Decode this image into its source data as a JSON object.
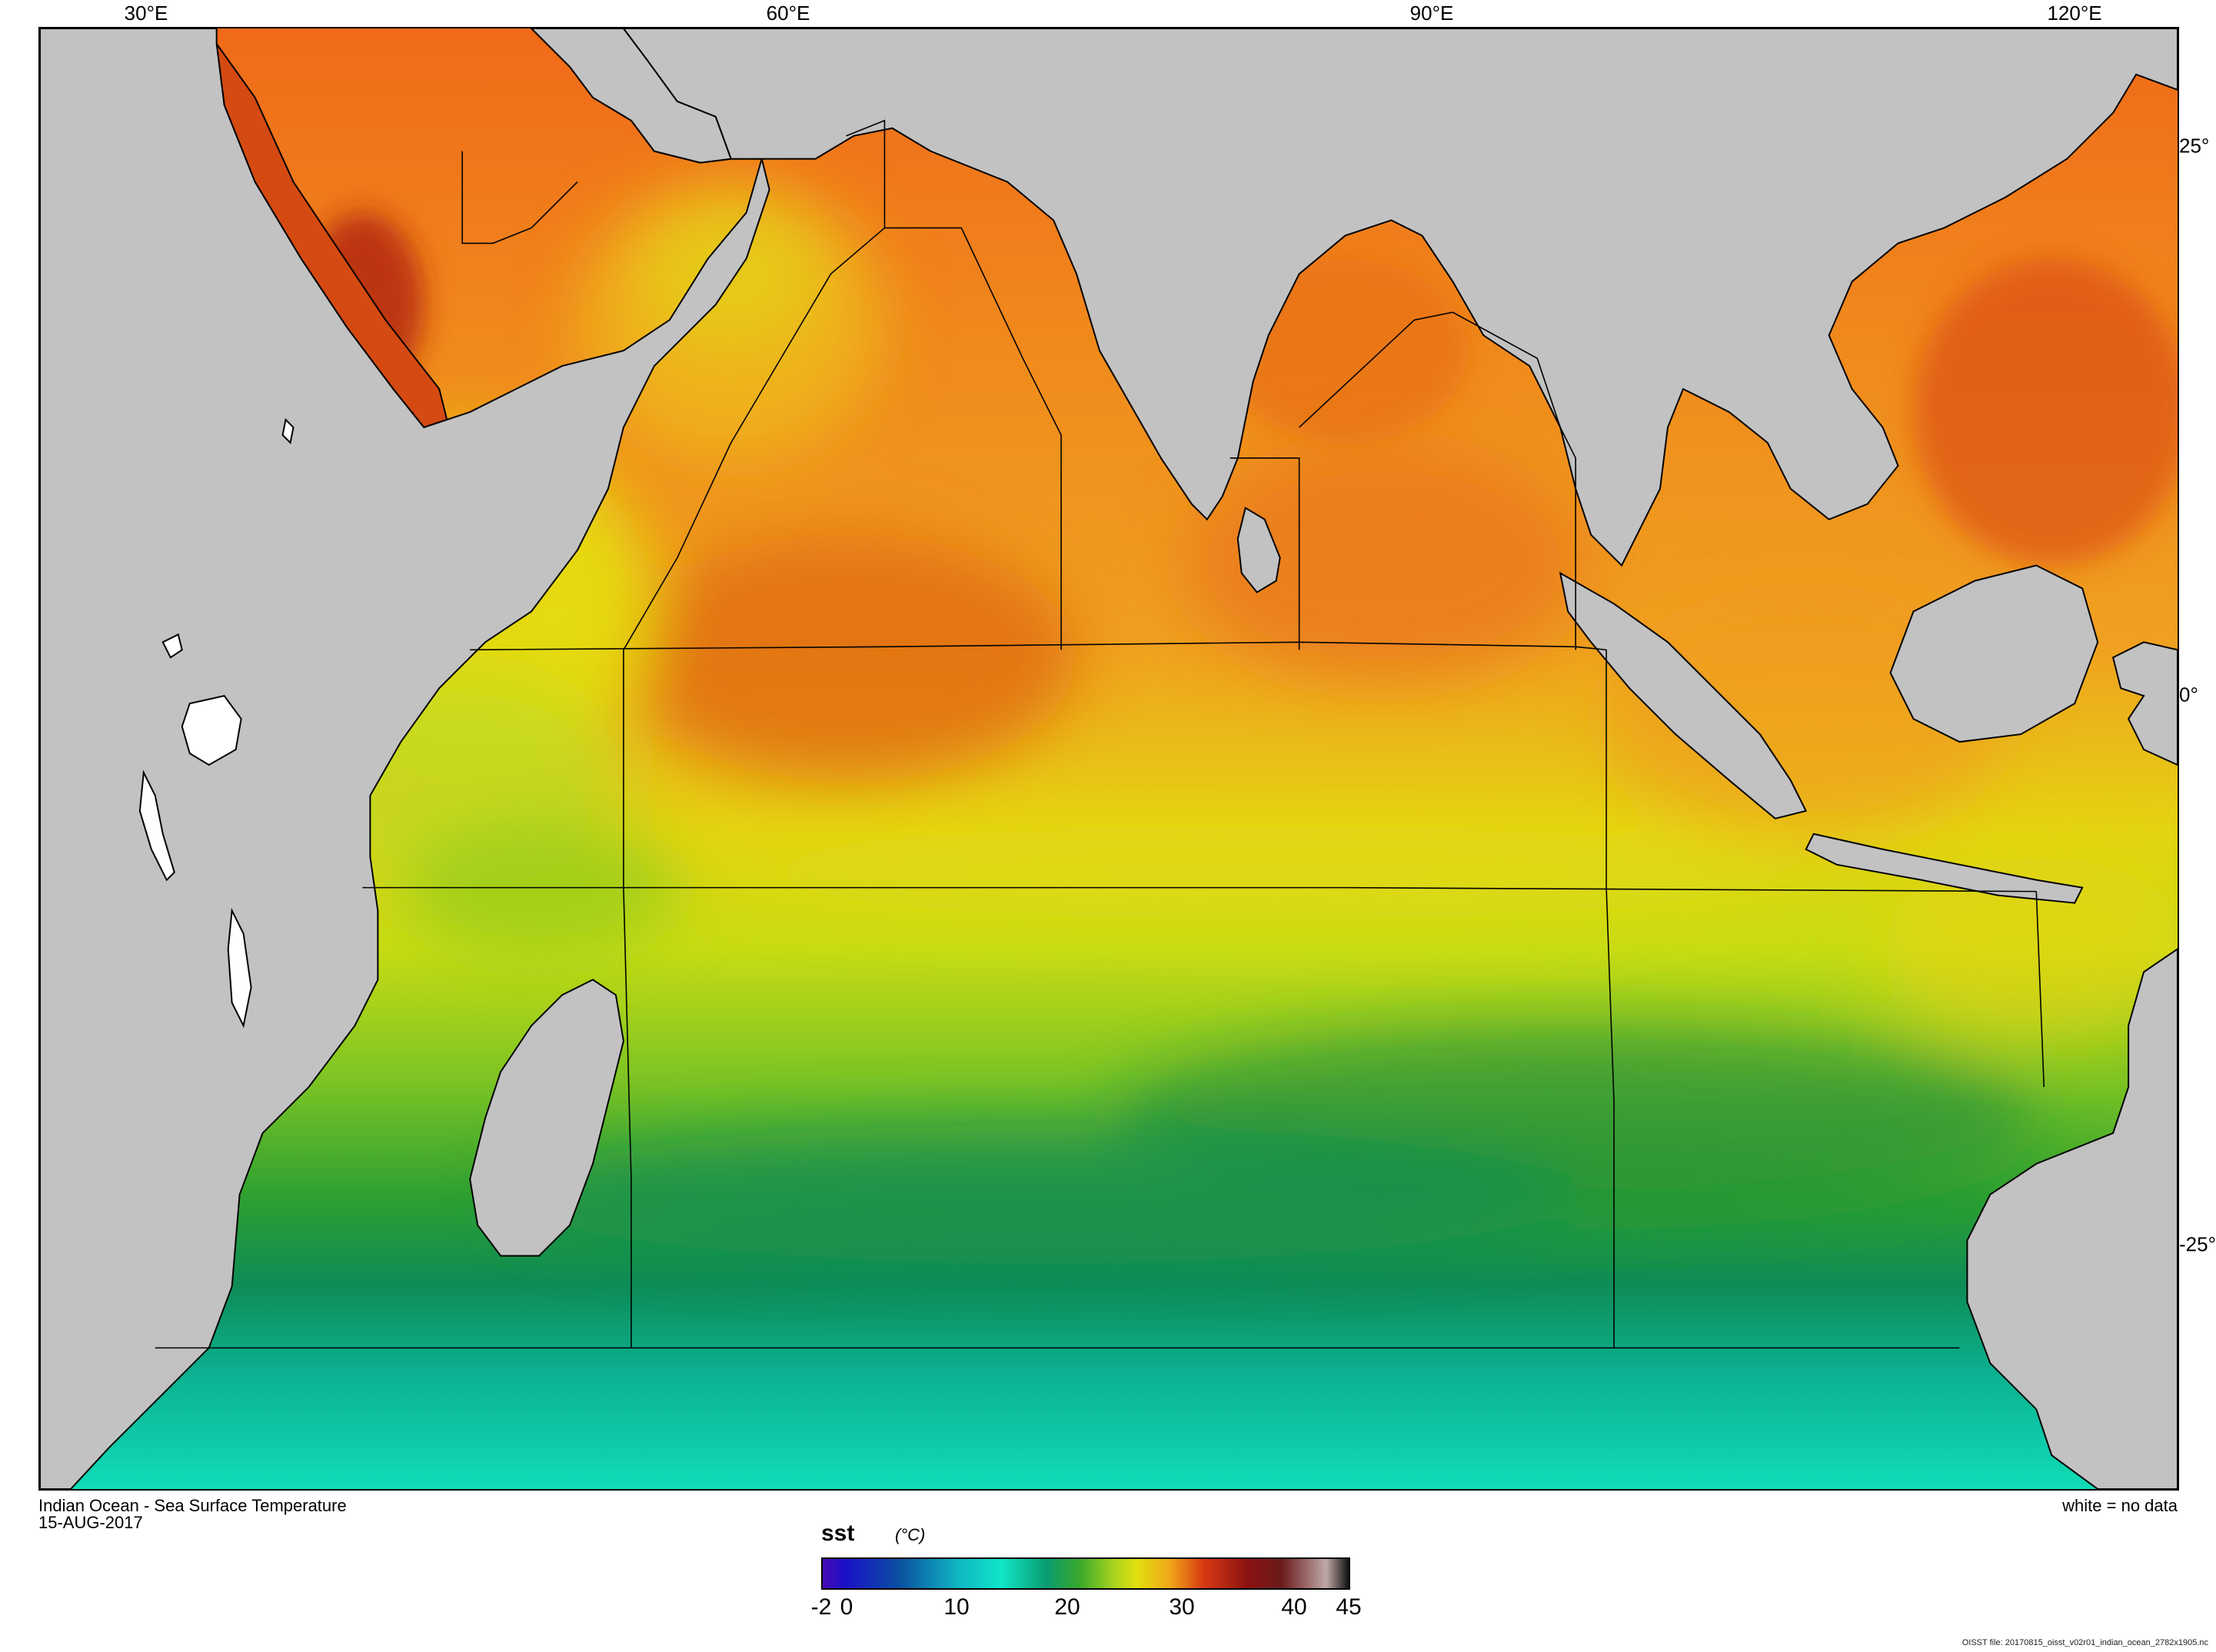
{
  "map": {
    "title": "Indian Ocean - Sea Surface Temperature",
    "date": "15-AUG-2017",
    "no_data_note": "white = no data",
    "source_note": "OISST file: 20170815_oisst_v02r01_indian_ocean_2782x1905.nc",
    "lon_labels": [
      "30°E",
      "60°E",
      "90°E",
      "120°E"
    ],
    "lat_labels": [
      "25°",
      "0°",
      "-25°"
    ],
    "colors": {
      "land": "#c2c2c2",
      "no_data": "#ffffff",
      "coast": "#000000",
      "warm_sea": "#e8701a",
      "hot_sea": "#8e1414",
      "cold_sea": "#10d8b8"
    }
  },
  "colorbar": {
    "variable": "sst",
    "unit": "(°C)",
    "tick_labels": [
      "-2",
      "0",
      "10",
      "20",
      "30",
      "40",
      "45"
    ],
    "range": [
      -2,
      45
    ],
    "stops": [
      {
        "value": -2,
        "color": "#4a0ab4"
      },
      {
        "value": 0,
        "color": "#1a10c8"
      },
      {
        "value": 5,
        "color": "#0a52a0"
      },
      {
        "value": 10,
        "color": "#10b4c2"
      },
      {
        "value": 14,
        "color": "#10e6c8"
      },
      {
        "value": 18,
        "color": "#0a9c70"
      },
      {
        "value": 21,
        "color": "#3aa82a"
      },
      {
        "value": 24,
        "color": "#a8d420"
      },
      {
        "value": 26,
        "color": "#e0e010"
      },
      {
        "value": 29,
        "color": "#f0a818"
      },
      {
        "value": 32,
        "color": "#d83a12"
      },
      {
        "value": 36,
        "color": "#8a1212"
      },
      {
        "value": 39,
        "color": "#6a1a1a"
      },
      {
        "value": 43,
        "color": "#c0a8a8"
      },
      {
        "value": 45,
        "color": "#101010"
      }
    ]
  }
}
